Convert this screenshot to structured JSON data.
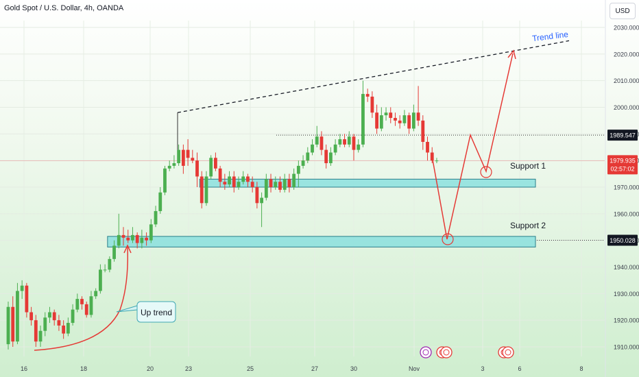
{
  "header": {
    "title": "Gold Spot / U.S. Dollar, 4h, OANDA",
    "currency": "USD"
  },
  "colors": {
    "up": "#26a69a",
    "up_body": "#4caf50",
    "down": "#e53935",
    "zone": "#7fdede",
    "zone_border": "#2a7e8a",
    "arrow": "#e53935",
    "trend_text": "#2962ff"
  },
  "chart_data": {
    "type": "candlestick",
    "ylim": [
      1905,
      2035
    ],
    "y_ticks": [
      1910,
      1920,
      1930,
      1940,
      1950,
      1960,
      1970,
      1980,
      1990,
      2000,
      2010,
      2020,
      2030
    ],
    "y_tick_labels": [
      "1910.000",
      "1920.000",
      "1930.000",
      "1940.000",
      "1950.000",
      "1960.000",
      "1970.000",
      "1980.000",
      "1990.000",
      "2000.000",
      "2010.000",
      "2020.000",
      "2030.000"
    ],
    "x_labels": [
      "16",
      "18",
      "20",
      "23",
      "25",
      "27",
      "30",
      "Nov",
      "3",
      "6",
      "8"
    ],
    "candles": [
      [
        1911,
        1925,
        1909,
        1927
      ],
      [
        1925,
        1912,
        1910,
        1929
      ],
      [
        1912,
        1931,
        1911,
        1934
      ],
      [
        1931,
        1933,
        1928,
        1935
      ],
      [
        1933,
        1923,
        1921,
        1934
      ],
      [
        1923,
        1920,
        1918,
        1925
      ],
      [
        1920,
        1912,
        1910,
        1922
      ],
      [
        1912,
        1916,
        1910,
        1918
      ],
      [
        1916,
        1921,
        1914,
        1923
      ],
      [
        1921,
        1923,
        1919,
        1925
      ],
      [
        1923,
        1920,
        1918,
        1924
      ],
      [
        1920,
        1918,
        1916,
        1922
      ],
      [
        1918,
        1915,
        1913,
        1920
      ],
      [
        1915,
        1919,
        1914,
        1921
      ],
      [
        1919,
        1924,
        1918,
        1926
      ],
      [
        1924,
        1928,
        1923,
        1930
      ],
      [
        1928,
        1926,
        1924,
        1929
      ],
      [
        1926,
        1922,
        1921,
        1927
      ],
      [
        1922,
        1929,
        1921,
        1931
      ],
      [
        1929,
        1931,
        1928,
        1932
      ],
      [
        1931,
        1939,
        1930,
        1941
      ],
      [
        1939,
        1939,
        1938,
        1941
      ],
      [
        1939,
        1943,
        1938,
        1944
      ],
      [
        1943,
        1948,
        1942,
        1950
      ],
      [
        1948,
        1952,
        1947,
        1960
      ],
      [
        1952,
        1951,
        1948,
        1955
      ],
      [
        1951,
        1950,
        1949,
        1954
      ],
      [
        1950,
        1952,
        1949,
        1955
      ],
      [
        1952,
        1949,
        1947,
        1953
      ],
      [
        1949,
        1951,
        1947,
        1954
      ],
      [
        1951,
        1950,
        1948,
        1953
      ],
      [
        1950,
        1956,
        1949,
        1958
      ],
      [
        1956,
        1961,
        1955,
        1963
      ],
      [
        1961,
        1968,
        1960,
        1970
      ],
      [
        1968,
        1977,
        1967,
        1978
      ],
      [
        1977,
        1978,
        1976,
        1980
      ],
      [
        1978,
        1979,
        1977,
        1982
      ],
      [
        1979,
        1984,
        1978,
        1986
      ],
      [
        1984,
        1978,
        1975,
        1986
      ],
      [
        1984,
        1981,
        1978,
        1988
      ],
      [
        1981,
        1980,
        1979,
        1984
      ],
      [
        1980,
        1974,
        1970,
        1983
      ],
      [
        1974,
        1964,
        1962,
        1976
      ],
      [
        1964,
        1974,
        1963,
        1976
      ],
      [
        1974,
        1981,
        1973,
        1982
      ],
      [
        1981,
        1977,
        1976,
        1983
      ],
      [
        1977,
        1972,
        1970,
        1978
      ],
      [
        1972,
        1971,
        1969,
        1975
      ],
      [
        1971,
        1974,
        1970,
        1976
      ],
      [
        1974,
        1970,
        1968,
        1976
      ],
      [
        1970,
        1972,
        1969,
        1974
      ],
      [
        1972,
        1974,
        1971,
        1976
      ],
      [
        1974,
        1972,
        1970,
        1975
      ],
      [
        1972,
        1970,
        1968,
        1974
      ],
      [
        1970,
        1964,
        1962,
        1972
      ],
      [
        1964,
        1966,
        1955,
        1968
      ],
      [
        1966,
        1973,
        1965,
        1975
      ],
      [
        1973,
        1970,
        1968,
        1975
      ],
      [
        1970,
        1972,
        1969,
        1974
      ],
      [
        1972,
        1969,
        1968,
        1974
      ],
      [
        1969,
        1973,
        1968,
        1975
      ],
      [
        1973,
        1970,
        1968,
        1975
      ],
      [
        1970,
        1975,
        1969,
        1977
      ],
      [
        1975,
        1978,
        1970,
        1980
      ],
      [
        1978,
        1980,
        1977,
        1982
      ],
      [
        1980,
        1983,
        1979,
        1985
      ],
      [
        1983,
        1986,
        1982,
        1988
      ],
      [
        1986,
        1989,
        1985,
        1993
      ],
      [
        1989,
        1984,
        1982,
        1991
      ],
      [
        1984,
        1979,
        1977,
        1986
      ],
      [
        1979,
        1983,
        1978,
        1985
      ],
      [
        1983,
        1986,
        1982,
        1988
      ],
      [
        1986,
        1988,
        1985,
        1990
      ],
      [
        1988,
        1986,
        1985,
        1990
      ],
      [
        1986,
        1989,
        1985,
        1991
      ],
      [
        1989,
        1984,
        1980,
        1990
      ],
      [
        1984,
        1986,
        1983,
        1988
      ],
      [
        1986,
        2005,
        1985,
        2010
      ],
      [
        2005,
        2004,
        2002,
        2007
      ],
      [
        2004,
        1998,
        1996,
        2006
      ],
      [
        1998,
        1992,
        1990,
        2001
      ],
      [
        1992,
        1997,
        1991,
        2000
      ],
      [
        1997,
        1998,
        1995,
        2000
      ],
      [
        1998,
        1996,
        1994,
        2000
      ],
      [
        1996,
        1995,
        1993,
        1998
      ],
      [
        1995,
        1994,
        1992,
        1997
      ],
      [
        1994,
        1997,
        1993,
        1999
      ],
      [
        1997,
        1992,
        1990,
        1998
      ],
      [
        1992,
        1998,
        1991,
        2001
      ],
      [
        1998,
        1995,
        1993,
        2008
      ],
      [
        1995,
        1987,
        1984,
        1997
      ],
      [
        1987,
        1983,
        1980,
        1989
      ],
      [
        1983,
        1980,
        1979,
        1985
      ],
      [
        1980,
        1980,
        1979,
        1981
      ]
    ],
    "price_lines": [
      {
        "value": 1989.547,
        "label": "1989.547",
        "style": "dotted"
      },
      {
        "value": 1950.028,
        "label": "1950.028",
        "style": "dotted"
      },
      {
        "value": 1979.935,
        "label": "1979.935",
        "timer": "02:57:02",
        "style": "solid"
      }
    ],
    "zones": [
      {
        "name": "Support 1",
        "low": 1970,
        "high": 1973,
        "from_candle": 42,
        "to_candle": 120
      },
      {
        "name": "Support 2",
        "low": 1947.5,
        "high": 1951.5,
        "from_candle": 22,
        "to_candle": 120
      }
    ],
    "annotations": [
      {
        "text": "Up trend"
      },
      {
        "text": "Trend line"
      },
      {
        "text": "Support 1"
      },
      {
        "text": "Support 2"
      }
    ],
    "projection": [
      [
        96,
        1980
      ],
      [
        100,
        1959
      ],
      [
        104,
        1949
      ],
      [
        110,
        1990
      ],
      [
        114,
        1973
      ],
      [
        118,
        2021
      ]
    ]
  }
}
